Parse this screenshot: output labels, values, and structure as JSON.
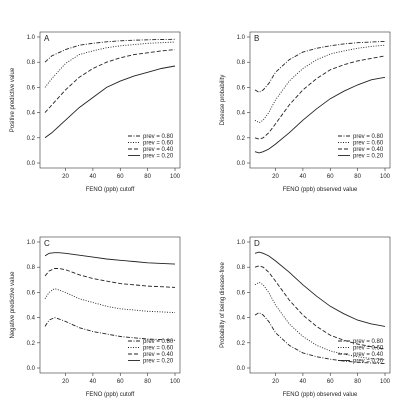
{
  "chart_data": [
    {
      "type": "line",
      "panel_label": "A",
      "xlabel": "FENO (ppb) cutoff",
      "ylabel": "Positive predictive value",
      "xlim": [
        5,
        100
      ],
      "ylim": [
        0,
        1
      ],
      "xticks": [
        "20",
        "40",
        "60",
        "80",
        "100"
      ],
      "yticks": [
        "0.0",
        "0.2",
        "0.4",
        "0.6",
        "0.8",
        "1.0"
      ],
      "legend_position": "bottom-right",
      "series": [
        {
          "name": "prev = 0.80",
          "style": "dotdash",
          "x": [
            5,
            10,
            20,
            30,
            40,
            50,
            60,
            70,
            80,
            90,
            100
          ],
          "y": [
            0.8,
            0.85,
            0.9,
            0.935,
            0.95,
            0.962,
            0.97,
            0.975,
            0.978,
            0.98,
            0.982
          ]
        },
        {
          "name": "prev = 0.60",
          "style": "dotted",
          "x": [
            5,
            10,
            20,
            30,
            40,
            50,
            60,
            70,
            80,
            90,
            100
          ],
          "y": [
            0.6,
            0.67,
            0.79,
            0.86,
            0.89,
            0.915,
            0.93,
            0.94,
            0.95,
            0.955,
            0.96
          ]
        },
        {
          "name": "prev = 0.40",
          "style": "dashed",
          "x": [
            5,
            10,
            20,
            30,
            40,
            50,
            60,
            70,
            80,
            90,
            100
          ],
          "y": [
            0.4,
            0.46,
            0.58,
            0.68,
            0.75,
            0.8,
            0.835,
            0.86,
            0.875,
            0.89,
            0.9
          ]
        },
        {
          "name": "prev = 0.20",
          "style": "solid",
          "x": [
            5,
            10,
            20,
            30,
            40,
            50,
            60,
            70,
            80,
            90,
            100
          ],
          "y": [
            0.2,
            0.24,
            0.34,
            0.44,
            0.52,
            0.6,
            0.65,
            0.69,
            0.72,
            0.75,
            0.77
          ]
        }
      ]
    },
    {
      "type": "line",
      "panel_label": "B",
      "xlabel": "FENO (ppb) observed value",
      "ylabel": "Disease probability",
      "xlim": [
        5,
        100
      ],
      "ylim": [
        0,
        1
      ],
      "xticks": [
        "20",
        "40",
        "60",
        "80",
        "100"
      ],
      "yticks": [
        "0.0",
        "0.2",
        "0.4",
        "0.6",
        "0.8",
        "1.0"
      ],
      "legend_position": "bottom-right",
      "series": [
        {
          "name": "prev = 0.80",
          "style": "dotdash",
          "x": [
            5,
            8,
            11,
            15,
            20,
            30,
            40,
            50,
            60,
            70,
            80,
            90,
            100
          ],
          "y": [
            0.58,
            0.56,
            0.58,
            0.63,
            0.72,
            0.82,
            0.88,
            0.91,
            0.93,
            0.945,
            0.955,
            0.96,
            0.965
          ]
        },
        {
          "name": "prev = 0.60",
          "style": "dotted",
          "x": [
            5,
            8,
            11,
            15,
            20,
            30,
            40,
            50,
            60,
            70,
            80,
            90,
            100
          ],
          "y": [
            0.34,
            0.32,
            0.34,
            0.4,
            0.5,
            0.65,
            0.75,
            0.82,
            0.865,
            0.89,
            0.91,
            0.925,
            0.935
          ]
        },
        {
          "name": "prev = 0.40",
          "style": "dashed",
          "x": [
            5,
            8,
            11,
            15,
            20,
            30,
            40,
            50,
            60,
            70,
            80,
            90,
            100
          ],
          "y": [
            0.2,
            0.19,
            0.2,
            0.24,
            0.31,
            0.46,
            0.58,
            0.67,
            0.74,
            0.78,
            0.81,
            0.83,
            0.85
          ]
        },
        {
          "name": "prev = 0.20",
          "style": "solid",
          "x": [
            5,
            8,
            11,
            15,
            20,
            30,
            40,
            50,
            60,
            70,
            80,
            90,
            100
          ],
          "y": [
            0.09,
            0.08,
            0.09,
            0.11,
            0.15,
            0.24,
            0.34,
            0.43,
            0.51,
            0.57,
            0.62,
            0.66,
            0.68
          ]
        }
      ]
    },
    {
      "type": "line",
      "panel_label": "C",
      "xlabel": "FENO (ppb) cutoff",
      "ylabel": "Negative predictive value",
      "xlim": [
        5,
        100
      ],
      "ylim": [
        0,
        1
      ],
      "xticks": [
        "20",
        "40",
        "60",
        "80",
        "100"
      ],
      "yticks": [
        "0.0",
        "0.2",
        "0.4",
        "0.6",
        "0.8",
        "1.0"
      ],
      "legend_position": "bottom-right",
      "series": [
        {
          "name": "prev = 0.80",
          "style": "dotdash",
          "x": [
            5,
            8,
            12,
            15,
            20,
            30,
            40,
            50,
            60,
            70,
            80,
            90,
            100
          ],
          "y": [
            0.33,
            0.38,
            0.4,
            0.39,
            0.37,
            0.32,
            0.29,
            0.27,
            0.25,
            0.24,
            0.23,
            0.225,
            0.22
          ]
        },
        {
          "name": "prev = 0.60",
          "style": "dotted",
          "x": [
            5,
            8,
            12,
            15,
            20,
            30,
            40,
            50,
            60,
            70,
            80,
            90,
            100
          ],
          "y": [
            0.55,
            0.6,
            0.63,
            0.62,
            0.6,
            0.55,
            0.52,
            0.49,
            0.47,
            0.46,
            0.45,
            0.445,
            0.44
          ]
        },
        {
          "name": "prev = 0.40",
          "style": "dashed",
          "x": [
            5,
            8,
            12,
            15,
            20,
            30,
            40,
            50,
            60,
            70,
            80,
            90,
            100
          ],
          "y": [
            0.73,
            0.77,
            0.79,
            0.79,
            0.78,
            0.74,
            0.71,
            0.69,
            0.67,
            0.66,
            0.65,
            0.645,
            0.64
          ]
        },
        {
          "name": "prev = 0.20",
          "style": "solid",
          "x": [
            5,
            8,
            12,
            15,
            20,
            30,
            40,
            50,
            60,
            70,
            80,
            90,
            100
          ],
          "y": [
            0.89,
            0.91,
            0.915,
            0.915,
            0.91,
            0.895,
            0.88,
            0.865,
            0.855,
            0.845,
            0.835,
            0.83,
            0.825
          ]
        }
      ]
    },
    {
      "type": "line",
      "panel_label": "D",
      "xlabel": "FENO (ppb) observed value",
      "ylabel": "Probability of being disease-free",
      "xlim": [
        5,
        100
      ],
      "ylim": [
        0,
        1
      ],
      "xticks": [
        "20",
        "40",
        "60",
        "80",
        "100"
      ],
      "yticks": [
        "0.0",
        "0.2",
        "0.4",
        "0.6",
        "0.8",
        "1.0"
      ],
      "legend_position": "bottom-right",
      "series": [
        {
          "name": "prev = 0.80",
          "style": "dotdash",
          "x": [
            5,
            8,
            11,
            15,
            20,
            30,
            40,
            50,
            60,
            70,
            80,
            90,
            100
          ],
          "y": [
            0.42,
            0.44,
            0.42,
            0.37,
            0.28,
            0.18,
            0.12,
            0.09,
            0.07,
            0.055,
            0.045,
            0.04,
            0.035
          ]
        },
        {
          "name": "prev = 0.60",
          "style": "dotted",
          "x": [
            5,
            8,
            11,
            15,
            20,
            30,
            40,
            50,
            60,
            70,
            80,
            90,
            100
          ],
          "y": [
            0.66,
            0.68,
            0.66,
            0.6,
            0.5,
            0.35,
            0.25,
            0.18,
            0.135,
            0.11,
            0.09,
            0.075,
            0.065
          ]
        },
        {
          "name": "prev = 0.40",
          "style": "dashed",
          "x": [
            5,
            8,
            11,
            15,
            20,
            30,
            40,
            50,
            60,
            70,
            80,
            90,
            100
          ],
          "y": [
            0.8,
            0.81,
            0.8,
            0.76,
            0.69,
            0.54,
            0.42,
            0.33,
            0.26,
            0.22,
            0.19,
            0.17,
            0.15
          ]
        },
        {
          "name": "prev = 0.20",
          "style": "solid",
          "x": [
            5,
            8,
            11,
            15,
            20,
            30,
            40,
            50,
            60,
            70,
            80,
            90,
            100
          ],
          "y": [
            0.91,
            0.92,
            0.91,
            0.89,
            0.85,
            0.76,
            0.66,
            0.57,
            0.49,
            0.43,
            0.38,
            0.35,
            0.33
          ]
        }
      ]
    }
  ]
}
